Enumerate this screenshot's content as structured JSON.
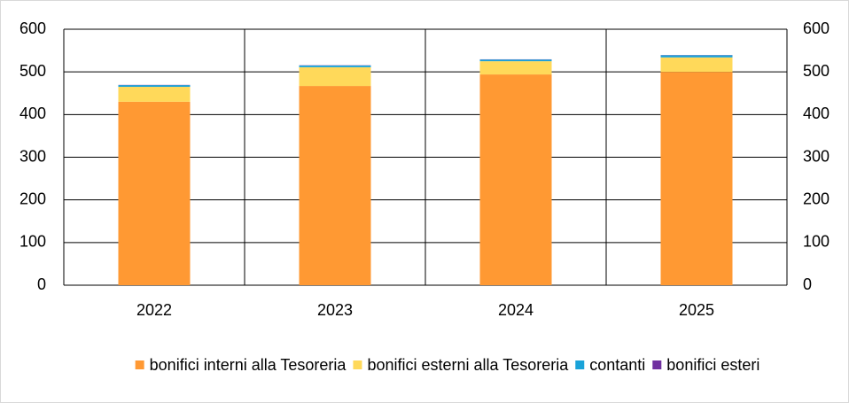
{
  "chart_data": {
    "type": "stacked_bar",
    "categories": [
      "2022",
      "2023",
      "2024",
      "2025"
    ],
    "series": [
      {
        "name": "bonifici interni alla Tesoreria",
        "color": "#ff9933",
        "values": [
          430,
          467,
          494,
          500
        ]
      },
      {
        "name": "bonifici esterni alla Tesoreria",
        "color": "#ffd95a",
        "values": [
          35,
          44,
          31,
          34
        ]
      },
      {
        "name": "contanti",
        "color": "#1aa3d9",
        "values": [
          4,
          4,
          4,
          5
        ]
      },
      {
        "name": "bonifici esteri",
        "color": "#7030a0",
        "values": [
          0.5,
          0.5,
          0.5,
          0.5
        ]
      }
    ],
    "ylim": [
      0,
      600
    ],
    "yticks": [
      0,
      100,
      200,
      300,
      400,
      500,
      600
    ],
    "y2lim": [
      0,
      600
    ],
    "y2ticks": [
      0,
      100,
      200,
      300,
      400,
      500,
      600
    ],
    "grid": true,
    "legend": "bottom"
  }
}
